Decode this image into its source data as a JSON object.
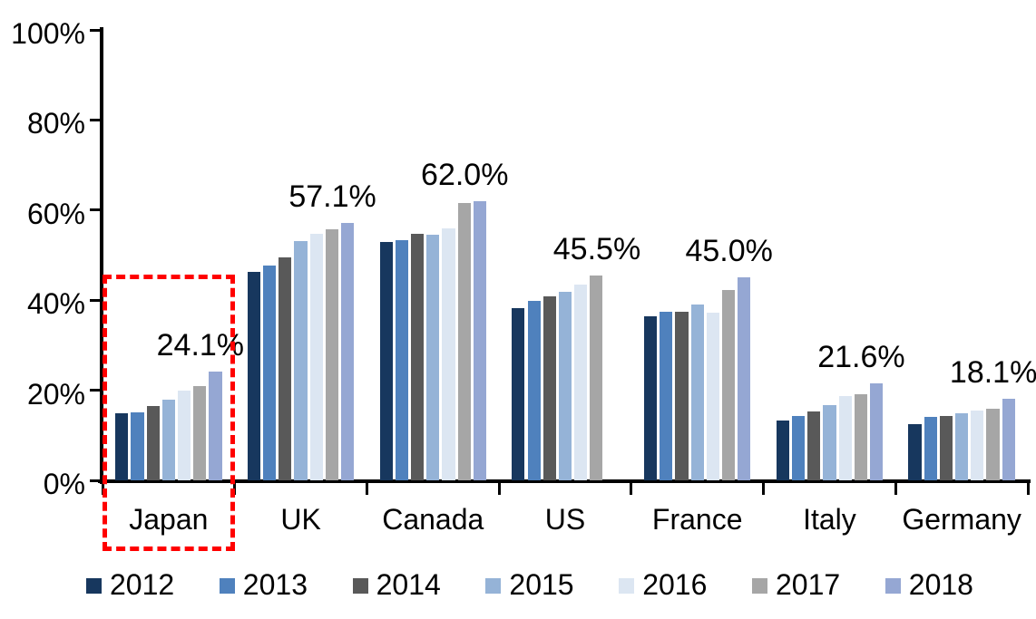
{
  "chart_data": {
    "type": "bar",
    "title": "",
    "xlabel": "",
    "ylabel": "",
    "categories": [
      "Japan",
      "UK",
      "Canada",
      "US",
      "France",
      "Italy",
      "Germany"
    ],
    "series": [
      {
        "name": "2012",
        "color": "#17375E",
        "values": [
          14.9,
          46.2,
          53.0,
          38.2,
          36.4,
          13.2,
          12.5
        ]
      },
      {
        "name": "2013",
        "color": "#4F81BD",
        "values": [
          15.0,
          47.7,
          53.3,
          39.9,
          37.5,
          14.2,
          14.0
        ]
      },
      {
        "name": "2014",
        "color": "#595959",
        "values": [
          16.4,
          49.5,
          54.8,
          40.9,
          37.5,
          15.3,
          14.2
        ]
      },
      {
        "name": "2015",
        "color": "#95B3D7",
        "values": [
          17.9,
          53.2,
          54.5,
          41.9,
          39.0,
          16.8,
          14.8
        ]
      },
      {
        "name": "2016",
        "color": "#DCE6F2",
        "values": [
          19.9,
          54.8,
          56.0,
          43.5,
          37.2,
          18.8,
          15.5
        ]
      },
      {
        "name": "2017",
        "color": "#A6A6A6",
        "values": [
          21.0,
          55.7,
          61.6,
          45.5,
          42.2,
          19.1,
          15.9
        ]
      },
      {
        "name": "2018",
        "color": "#95A7D3",
        "values": [
          24.1,
          57.1,
          62.0,
          null,
          45.0,
          21.6,
          18.1
        ]
      }
    ],
    "value_labels": [
      "24.1%",
      "57.1%",
      "62.0%",
      "45.5%",
      "45.0%",
      "21.6%",
      "18.1%"
    ],
    "y_axis": {
      "min": 0,
      "max": 100,
      "step": 20,
      "tick_labels": [
        "0%",
        "20%",
        "40%",
        "60%",
        "80%",
        "100%"
      ]
    },
    "grid": false,
    "legend_position": "bottom",
    "legend_entries": [
      "2012",
      "2013",
      "2014",
      "2015",
      "2016",
      "2017",
      "2018"
    ],
    "highlight": {
      "category": "Japan",
      "style": "red-dashed-box",
      "color": "#FF0000"
    }
  }
}
